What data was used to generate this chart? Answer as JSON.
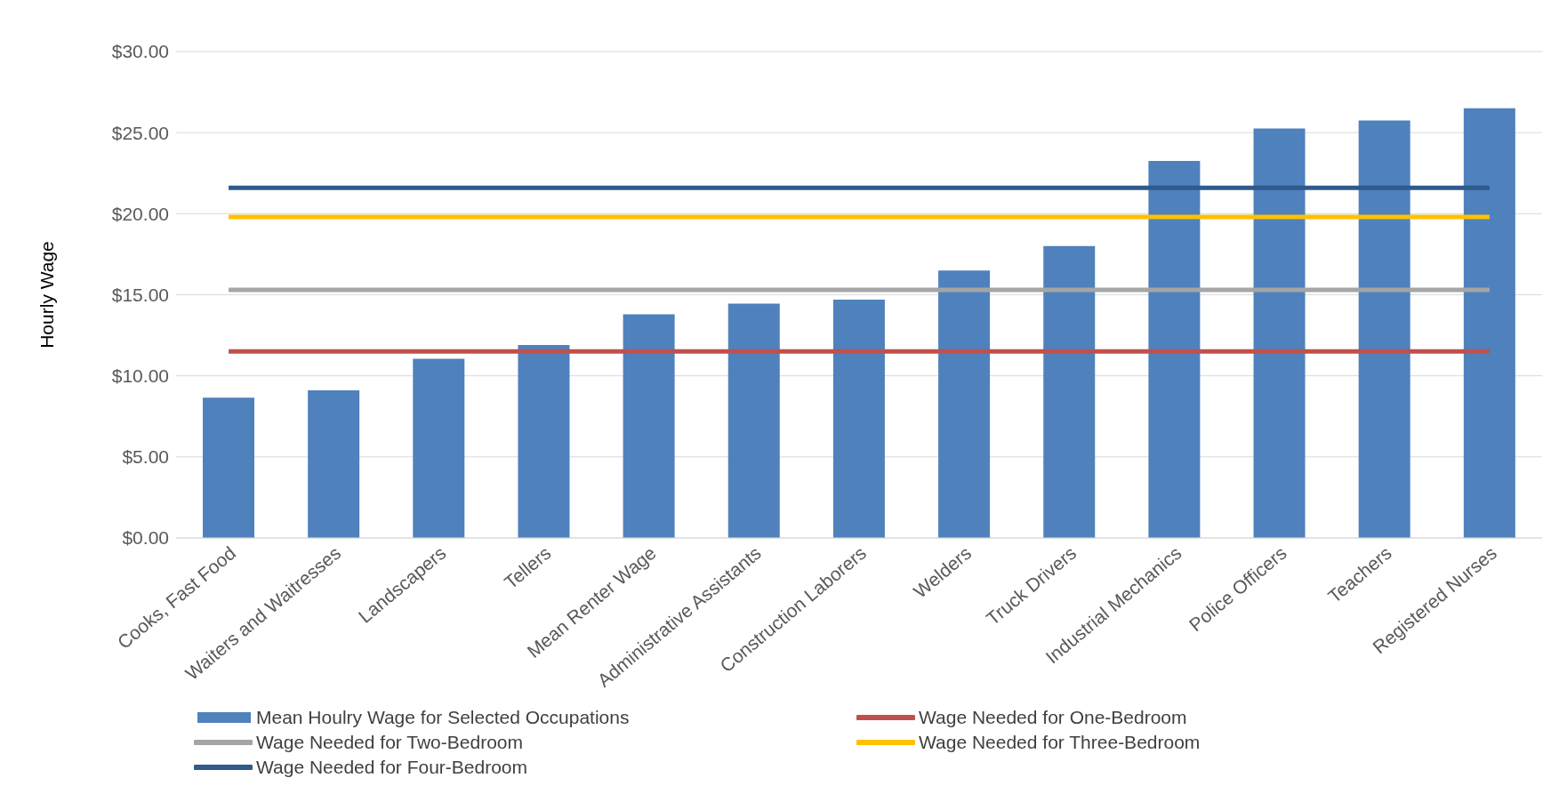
{
  "chart_data": {
    "type": "bar",
    "ylabel": "Hourly Wage",
    "categories": [
      "Cooks, Fast Food",
      "Waiters and Waitresses",
      "Landscapers",
      "Tellers",
      "Mean Renter Wage",
      "Administrative Assistants",
      "Construction Laborers",
      "Welders",
      "Truck Drivers",
      "Industrial Mechanics",
      "Police Officers",
      "Teachers",
      "Registered Nurses"
    ],
    "series": [
      {
        "name": "Mean Houlry Wage for Selected Occupations",
        "color": "#4f81bd",
        "values": [
          8.65,
          9.1,
          11.05,
          11.9,
          13.8,
          14.45,
          14.7,
          16.5,
          18.0,
          23.25,
          25.25,
          25.75,
          26.5
        ]
      },
      {
        "name": "Wage Needed for One-Bedroom",
        "type": "line",
        "color": "#c0504d",
        "values": [
          11.5,
          11.5,
          11.5,
          11.5,
          11.5,
          11.5,
          11.5,
          11.5,
          11.5,
          11.5,
          11.5,
          11.5,
          11.5
        ]
      },
      {
        "name": "Wage Needed for Two-Bedroom",
        "type": "line",
        "color": "#a5a5a5",
        "values": [
          15.3,
          15.3,
          15.3,
          15.3,
          15.3,
          15.3,
          15.3,
          15.3,
          15.3,
          15.3,
          15.3,
          15.3,
          15.3
        ]
      },
      {
        "name": "Wage Needed for Three-Bedroom",
        "type": "line",
        "color": "#ffc000",
        "values": [
          19.8,
          19.8,
          19.8,
          19.8,
          19.8,
          19.8,
          19.8,
          19.8,
          19.8,
          19.8,
          19.8,
          19.8,
          19.8
        ]
      },
      {
        "name": "Wage Needed for Four-Bedroom",
        "type": "line",
        "color": "#2f5a8c",
        "values": [
          21.6,
          21.6,
          21.6,
          21.6,
          21.6,
          21.6,
          21.6,
          21.6,
          21.6,
          21.6,
          21.6,
          21.6,
          21.6
        ]
      }
    ],
    "ylim": [
      0,
      30
    ],
    "yticks": [
      {
        "value": 0,
        "label": "$0.00"
      },
      {
        "value": 5,
        "label": "$5.00"
      },
      {
        "value": 10,
        "label": "$10.00"
      },
      {
        "value": 15,
        "label": "$15.00"
      },
      {
        "value": 20,
        "label": "$20.00"
      },
      {
        "value": 25,
        "label": "$25.00"
      },
      {
        "value": 30,
        "label": "$30.00"
      }
    ],
    "grid": "y",
    "legend": "bottom",
    "marker": "none",
    "line_style": "solid"
  }
}
